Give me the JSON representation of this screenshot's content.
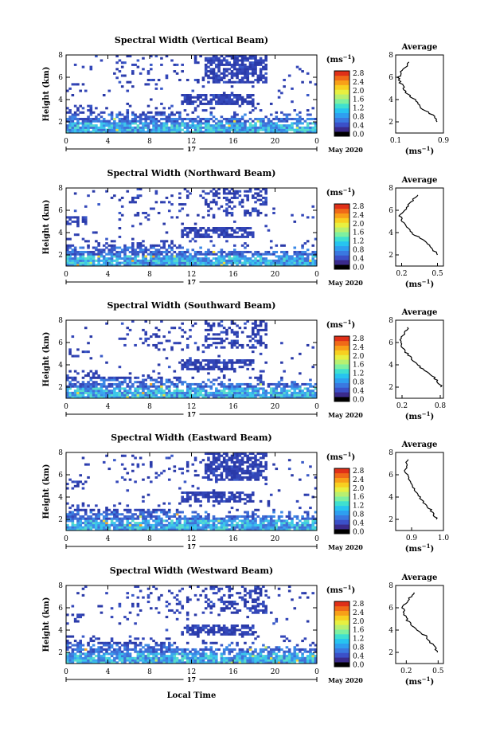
{
  "chart_data": {
    "type": "heatmap",
    "colorbar": {
      "unit": "(ms",
      "unit_exp": "−1",
      "ticks": [
        "2.8",
        "2.4",
        "2.0",
        "1.6",
        "1.2",
        "0.8",
        "0.4",
        "0.0"
      ],
      "colors": [
        "#000000",
        "#3a2a8c",
        "#3b50c8",
        "#3a78e0",
        "#2e9ff0",
        "#27c4f0",
        "#3fe0d0",
        "#7ef0a0",
        "#b8f070",
        "#e8f040",
        "#f8d020",
        "#f8a018",
        "#f06a18",
        "#e03018"
      ]
    },
    "date_label": "May 2020",
    "day_label": "17",
    "xlabel": "Local Time",
    "x_ticks": [
      "0",
      "4",
      "8",
      "12",
      "16",
      "20",
      "0"
    ],
    "y_ticks": [
      "2",
      "4",
      "6",
      "8"
    ],
    "ylabel": "Height (km)",
    "xlim": [
      0,
      24
    ],
    "ylim": [
      1,
      8
    ],
    "average": {
      "title": "Average",
      "xlabel": "(ms",
      "xlabel_exp": "−1",
      "y_ticks": [
        "2",
        "4",
        "6",
        "8"
      ]
    },
    "panels": [
      {
        "title": "Spectral Width (Vertical Beam)",
        "avg_x_ticks": [
          "0.1",
          "0.9"
        ],
        "avg_xlim": [
          0.1,
          0.9
        ],
        "profile": [
          [
            2.0,
            0.8
          ],
          [
            2.5,
            0.74
          ],
          [
            3.0,
            0.6
          ],
          [
            3.5,
            0.48
          ],
          [
            4.0,
            0.42
          ],
          [
            4.5,
            0.3
          ],
          [
            5.0,
            0.24
          ],
          [
            5.5,
            0.18
          ],
          [
            6.0,
            0.15
          ],
          [
            6.5,
            0.2
          ],
          [
            7.0,
            0.28
          ],
          [
            7.5,
            0.32
          ]
        ]
      },
      {
        "title": "Spectral Width (Northward Beam)",
        "avg_x_ticks": [
          "0.2",
          "0.5"
        ],
        "avg_xlim": [
          0.15,
          0.55
        ],
        "profile": [
          [
            2.0,
            0.5
          ],
          [
            2.5,
            0.46
          ],
          [
            3.0,
            0.42
          ],
          [
            3.5,
            0.36
          ],
          [
            4.0,
            0.28
          ],
          [
            4.5,
            0.24
          ],
          [
            5.0,
            0.2
          ],
          [
            5.5,
            0.19
          ],
          [
            6.0,
            0.22
          ],
          [
            6.5,
            0.26
          ],
          [
            7.0,
            0.3
          ],
          [
            7.5,
            0.34
          ]
        ]
      },
      {
        "title": "Spectral Width (Southward Beam)",
        "avg_x_ticks": [
          "0.2",
          "0.8"
        ],
        "avg_xlim": [
          0.1,
          0.85
        ],
        "profile": [
          [
            2.0,
            0.82
          ],
          [
            2.5,
            0.76
          ],
          [
            3.0,
            0.68
          ],
          [
            3.5,
            0.56
          ],
          [
            4.0,
            0.44
          ],
          [
            4.5,
            0.36
          ],
          [
            5.0,
            0.28
          ],
          [
            5.5,
            0.22
          ],
          [
            6.0,
            0.18
          ],
          [
            6.5,
            0.2
          ],
          [
            7.0,
            0.26
          ],
          [
            7.5,
            0.3
          ]
        ]
      },
      {
        "title": "Spectral Width (Eastward Beam)",
        "avg_x_ticks": [
          "0.9",
          "1.0"
        ],
        "avg_xlim": [
          0.85,
          1.0
        ],
        "profile": [
          [
            2.0,
            0.98
          ],
          [
            2.5,
            0.97
          ],
          [
            3.0,
            0.955
          ],
          [
            3.5,
            0.94
          ],
          [
            4.0,
            0.925
          ],
          [
            4.5,
            0.91
          ],
          [
            5.0,
            0.9
          ],
          [
            5.5,
            0.89
          ],
          [
            6.0,
            0.885
          ],
          [
            6.5,
            0.88
          ],
          [
            7.0,
            0.885
          ],
          [
            7.5,
            0.89
          ]
        ]
      },
      {
        "title": "Spectral Width (Westward Beam)",
        "avg_x_ticks": [
          "0.2",
          "0.5"
        ],
        "avg_xlim": [
          0.1,
          0.55
        ],
        "profile": [
          [
            2.0,
            0.5
          ],
          [
            2.5,
            0.46
          ],
          [
            3.0,
            0.42
          ],
          [
            3.5,
            0.38
          ],
          [
            4.0,
            0.3
          ],
          [
            4.5,
            0.25
          ],
          [
            5.0,
            0.2
          ],
          [
            5.5,
            0.18
          ],
          [
            6.0,
            0.17
          ],
          [
            6.5,
            0.2
          ],
          [
            7.0,
            0.24
          ],
          [
            7.5,
            0.28
          ]
        ]
      }
    ]
  }
}
